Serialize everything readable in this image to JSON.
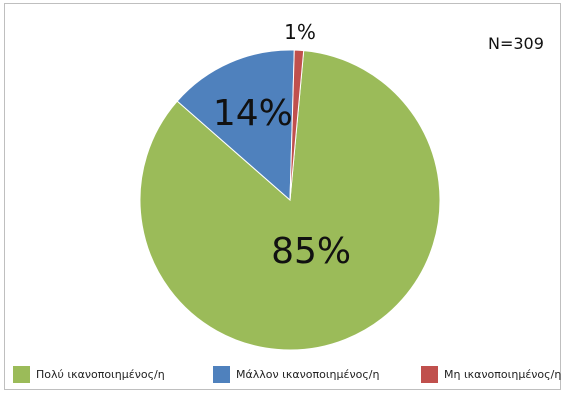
{
  "chart_data": {
    "type": "pie",
    "annotation": "N=309",
    "legend_position": "bottom",
    "slices": [
      {
        "label": "Πολύ ικανοποιημένος/η",
        "value": 85,
        "display": "85%",
        "color": "#9bbb59"
      },
      {
        "label": "Μάλλον ικανοποιημένος/η",
        "value": 14,
        "display": "14%",
        "color": "#4f81bd"
      },
      {
        "label": "Μη ικανοποιημένος/η",
        "value": 1,
        "display": "1%",
        "color": "#c0504d"
      }
    ]
  }
}
